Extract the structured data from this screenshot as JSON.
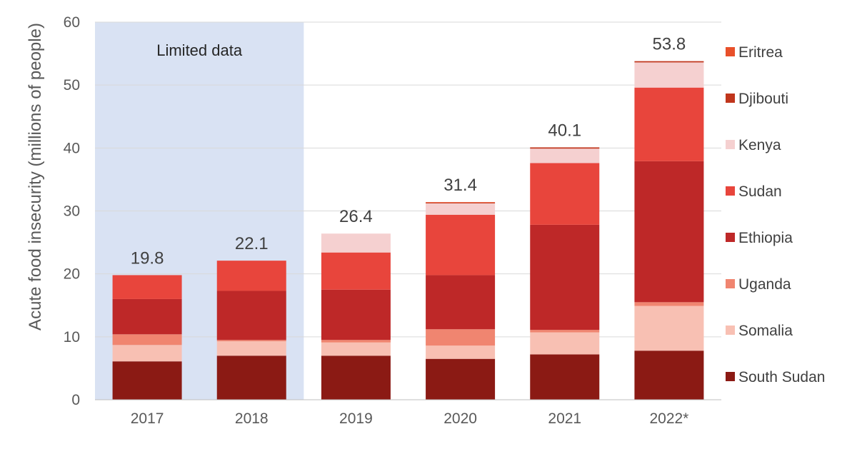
{
  "chart_data": {
    "type": "bar",
    "stacked": true,
    "categories": [
      "2017",
      "2018",
      "2019",
      "2020",
      "2021",
      "2022*"
    ],
    "ylabel": "Acute food insecurity (millions of people)",
    "xlabel": "",
    "ylim": [
      0,
      60
    ],
    "yticks": [
      0,
      10,
      20,
      30,
      40,
      50,
      60
    ],
    "grid": true,
    "legend_position": "right",
    "totals": [
      "19.8",
      "22.1",
      "26.4",
      "31.4",
      "40.1",
      "53.8"
    ],
    "shaded_region": {
      "label": "Limited data",
      "categories": [
        "2017",
        "2018"
      ],
      "color": "#d9e2f3"
    },
    "series": [
      {
        "name": "South Sudan",
        "color": "#8b1a14",
        "values": [
          6.1,
          7.0,
          7.0,
          6.5,
          7.2,
          7.8
        ]
      },
      {
        "name": "Somalia",
        "color": "#f8c0b3",
        "values": [
          2.6,
          2.3,
          2.1,
          2.1,
          3.5,
          7.1
        ]
      },
      {
        "name": "Uganda",
        "color": "#f08570",
        "values": [
          1.7,
          0.2,
          0.4,
          2.6,
          0.4,
          0.6
        ]
      },
      {
        "name": "Ethiopia",
        "color": "#be2828",
        "values": [
          5.6,
          7.8,
          8.0,
          8.6,
          16.7,
          22.4
        ]
      },
      {
        "name": "Sudan",
        "color": "#e8453c",
        "values": [
          3.8,
          4.8,
          5.9,
          9.6,
          9.8,
          11.7
        ]
      },
      {
        "name": "Kenya",
        "color": "#f5d0d0",
        "values": [
          0.0,
          0.0,
          3.0,
          1.8,
          2.3,
          4.0
        ]
      },
      {
        "name": "Djibouti",
        "color": "#c0361c",
        "values": [
          0.0,
          0.0,
          0.0,
          0.1,
          0.2,
          0.2
        ]
      },
      {
        "name": "Eritrea",
        "color": "#e8502a",
        "values": [
          0.0,
          0.0,
          0.0,
          0.1,
          0.0,
          0.0
        ]
      }
    ]
  }
}
